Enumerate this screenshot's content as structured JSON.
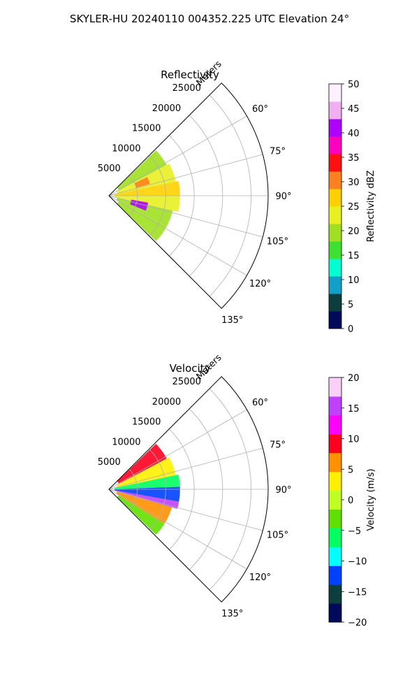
{
  "figure_title": "SKYLER-HU  20240110  004352.225 UTC Elevation 24°",
  "chart_data": [
    {
      "type": "heatmap",
      "title": "Reflectivity",
      "radial_axis_label": "Meters",
      "radial_ticks": [
        5000,
        10000,
        15000,
        20000,
        25000
      ],
      "radial_range": [
        0,
        28000
      ],
      "angle_range_deg": [
        45,
        135
      ],
      "angle_ticks": [
        "60°",
        "75°",
        "90°",
        "105°",
        "120°",
        "135°"
      ],
      "angle_tick_values": [
        60,
        75,
        90,
        105,
        120,
        135
      ],
      "grid": true,
      "data_extent_m": 12000,
      "colorbar": {
        "label": "Reflectivity dBZ",
        "range": [
          0,
          50
        ],
        "ticks": [
          "0",
          "5",
          "10",
          "15",
          "20",
          "25",
          "30",
          "35",
          "40",
          "45",
          "50"
        ]
      },
      "colormap": [
        "#000a5a",
        "#0b3e3c",
        "#10a0c8",
        "#00ffd0",
        "#40e030",
        "#a0e020",
        "#e8f020",
        "#ffd000",
        "#ff8020",
        "#ff1010",
        "#ff00c0",
        "#b000ff",
        "#f0b0f0",
        "#fff0ff"
      ],
      "regions": [
        {
          "angle": [
            46,
            62
          ],
          "range": [
            2000,
            11500
          ],
          "value": 20
        },
        {
          "angle": [
            62,
            78
          ],
          "range": [
            1500,
            12000
          ],
          "value": 22
        },
        {
          "angle": [
            78,
            90
          ],
          "range": [
            1000,
            12500
          ],
          "value": 25
        },
        {
          "angle": [
            90,
            103
          ],
          "range": [
            1000,
            12500
          ],
          "value": 24
        },
        {
          "angle": [
            103,
            118
          ],
          "range": [
            1500,
            11500
          ],
          "value": 21
        },
        {
          "angle": [
            118,
            134
          ],
          "range": [
            2000,
            11500
          ],
          "value": 19
        },
        {
          "angle": [
            100,
            112
          ],
          "range": [
            4000,
            7000
          ],
          "value": 40
        },
        {
          "angle": [
            64,
            74
          ],
          "range": [
            5000,
            7500
          ],
          "value": 32
        }
      ]
    },
    {
      "type": "heatmap",
      "title": "Velocity",
      "radial_axis_label": "Meters",
      "radial_ticks": [
        5000,
        10000,
        15000,
        20000,
        25000
      ],
      "radial_range": [
        0,
        28000
      ],
      "angle_range_deg": [
        45,
        135
      ],
      "angle_ticks": [
        "60°",
        "75°",
        "90°",
        "105°",
        "120°",
        "135°"
      ],
      "angle_tick_values": [
        60,
        75,
        90,
        105,
        120,
        135
      ],
      "grid": true,
      "data_extent_m": 12000,
      "colorbar": {
        "label": "Velocity (m/s)",
        "range": [
          -20,
          20
        ],
        "ticks": [
          "−20",
          "−15",
          "−10",
          "−5",
          "0",
          "5",
          "10",
          "15",
          "20"
        ]
      },
      "colormap": [
        "#000a5a",
        "#0b3e3c",
        "#0040ff",
        "#00ffff",
        "#00ff60",
        "#60e000",
        "#c0ff20",
        "#fff000",
        "#ff9000",
        "#ff0020",
        "#ff00ff",
        "#c040ff",
        "#f8d0f8"
      ],
      "regions": [
        {
          "angle": [
            46,
            62
          ],
          "range": [
            2000,
            11500
          ],
          "value": 10
        },
        {
          "angle": [
            62,
            78
          ],
          "range": [
            1500,
            12000
          ],
          "value": 2
        },
        {
          "angle": [
            78,
            88
          ],
          "range": [
            1000,
            12500
          ],
          "value": -6
        },
        {
          "angle": [
            88,
            100
          ],
          "range": [
            1000,
            12500
          ],
          "value": -11
        },
        {
          "angle": [
            100,
            106
          ],
          "range": [
            1000,
            12500
          ],
          "value": 14
        },
        {
          "angle": [
            106,
            122
          ],
          "range": [
            1500,
            11500
          ],
          "value": 7
        },
        {
          "angle": [
            122,
            134
          ],
          "range": [
            2000,
            11500
          ],
          "value": -4
        }
      ]
    }
  ]
}
